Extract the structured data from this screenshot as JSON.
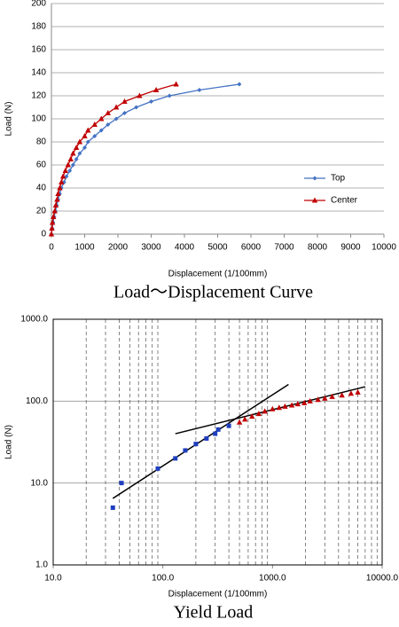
{
  "chart_data": [
    {
      "type": "line",
      "title": "Load～Displacement Curve",
      "xlabel": "Displacement (1/100mm)",
      "ylabel": "Load (N)",
      "xlim": [
        0,
        10000
      ],
      "xticks": [
        0,
        1000,
        2000,
        3000,
        4000,
        5000,
        6000,
        7000,
        8000,
        9000,
        10000
      ],
      "ylim": [
        0,
        200
      ],
      "yticks": [
        0,
        20,
        40,
        60,
        80,
        100,
        120,
        140,
        160,
        180,
        200
      ],
      "grid": true,
      "legend": "right",
      "series": [
        {
          "name": "Top",
          "color": "#4472c4",
          "marker": "diamond",
          "x": [
            0,
            20,
            50,
            80,
            120,
            160,
            200,
            250,
            300,
            380,
            450,
            550,
            650,
            750,
            850,
            1000,
            1100,
            1300,
            1500,
            1700,
            1950,
            2200,
            2550,
            3000,
            3550,
            4450,
            5650
          ],
          "values": [
            0,
            5,
            10,
            15,
            20,
            25,
            30,
            35,
            40,
            45,
            50,
            55,
            60,
            65,
            70,
            75,
            80,
            85,
            90,
            95,
            100,
            105,
            110,
            115,
            120,
            125,
            130
          ]
        },
        {
          "name": "Center",
          "color": "#c00000",
          "marker": "triangle",
          "x": [
            0,
            15,
            30,
            60,
            100,
            130,
            170,
            200,
            250,
            300,
            350,
            420,
            500,
            580,
            650,
            750,
            850,
            1000,
            1100,
            1300,
            1500,
            1700,
            1950,
            2200,
            2650,
            3150,
            3750
          ],
          "values": [
            0,
            5,
            10,
            15,
            20,
            25,
            30,
            35,
            40,
            45,
            50,
            55,
            60,
            65,
            70,
            75,
            80,
            85,
            90,
            95,
            100,
            105,
            110,
            115,
            120,
            125,
            130
          ]
        }
      ]
    },
    {
      "type": "scatter",
      "title": "Yield Load",
      "xlabel": "Displacement (1/100mm)",
      "ylabel": "Load (N)",
      "log_x": true,
      "log_y": true,
      "xlim": [
        10,
        10000
      ],
      "xticks": [
        {
          "value": 10,
          "label": "10.0"
        },
        {
          "value": 100,
          "label": "100.0"
        },
        {
          "value": 1000,
          "label": "1000.0"
        },
        {
          "value": 10000,
          "label": "10000.0"
        }
      ],
      "xminor": [
        20,
        30,
        40,
        50,
        60,
        70,
        80,
        90,
        200,
        300,
        400,
        500,
        600,
        700,
        800,
        900,
        2000,
        3000,
        4000,
        5000,
        6000,
        7000,
        8000,
        9000
      ],
      "ylim": [
        1,
        1000
      ],
      "yticks": [
        {
          "value": 1,
          "label": "1.0"
        },
        {
          "value": 10,
          "label": "10.0"
        },
        {
          "value": 100,
          "label": "100.0"
        },
        {
          "value": 1000,
          "label": "1000.0"
        }
      ],
      "grid": true,
      "series": [
        {
          "color": "#1f3fbf",
          "marker": "square",
          "x": [
            35,
            42,
            90,
            130,
            160,
            200,
            250,
            300,
            320,
            400
          ],
          "values": [
            5,
            10,
            15,
            20,
            25,
            30,
            35,
            40,
            45,
            50
          ]
        },
        {
          "color": "#c00000",
          "marker": "triangle",
          "x": [
            500,
            560,
            650,
            750,
            850,
            1000,
            1150,
            1300,
            1500,
            1700,
            1950,
            2200,
            2600,
            3000,
            3500,
            4300,
            5200,
            6000
          ],
          "values": [
            55,
            60,
            65,
            70,
            75,
            80,
            83,
            86,
            89,
            92,
            95,
            100,
            104,
            108,
            113,
            118,
            124,
            128
          ]
        }
      ],
      "fit_lines": [
        {
          "color": "#000000",
          "x": [
            35,
            1400
          ],
          "values": [
            6.5,
            160
          ]
        },
        {
          "color": "#000000",
          "x": [
            130,
            7000
          ],
          "values": [
            40,
            150
          ]
        }
      ]
    }
  ]
}
